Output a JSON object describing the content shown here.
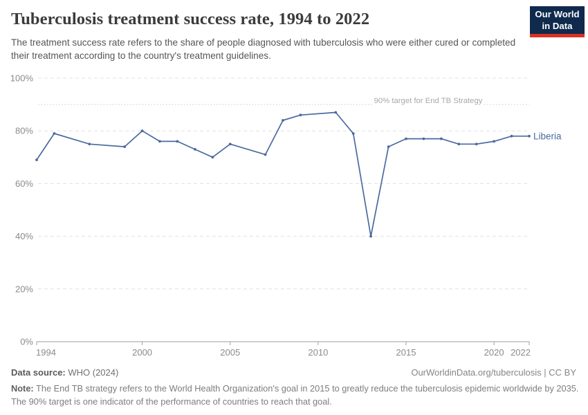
{
  "header": {
    "title": "Tuberculosis treatment success rate, 1994 to 2022",
    "subtitle": "The treatment success rate refers to the share of people diagnosed with tuberculosis who were either cured or completed their treatment according to the country's treatment guidelines.",
    "logo": {
      "line1": "Our World",
      "line2": "in Data"
    }
  },
  "colors": {
    "series_blue": "#4a69a0",
    "logo_bg": "#102a4d",
    "logo_accent": "#dc3020",
    "grid": "#e0e0e0",
    "target_line": "#c9c9c9",
    "target_text": "#a8a8a8",
    "axis_text": "#8a8a8a",
    "axis_line": "#9e9e9e"
  },
  "chart_data": {
    "type": "line",
    "title": "Tuberculosis treatment success rate, 1994 to 2022",
    "xlabel": "",
    "ylabel": "",
    "xlim": [
      1994,
      2022
    ],
    "ylim": [
      0,
      100
    ],
    "x_ticks": [
      1994,
      2000,
      2005,
      2010,
      2015,
      2020,
      2022
    ],
    "y_ticks": [
      0,
      20,
      40,
      60,
      80,
      100
    ],
    "y_tick_suffix": "%",
    "grid": true,
    "target_line": {
      "value": 90,
      "label": "90% target for End TB Strategy"
    },
    "series": [
      {
        "name": "Liberia",
        "points": [
          [
            1994,
            69
          ],
          [
            1995,
            79
          ],
          [
            1997,
            75
          ],
          [
            1999,
            74
          ],
          [
            2000,
            80
          ],
          [
            2001,
            76
          ],
          [
            2002,
            76
          ],
          [
            2003,
            73
          ],
          [
            2004,
            70
          ],
          [
            2005,
            75
          ],
          [
            2007,
            71
          ],
          [
            2008,
            84
          ],
          [
            2009,
            86
          ],
          [
            2011,
            87
          ],
          [
            2012,
            79
          ],
          [
            2013,
            40
          ],
          [
            2014,
            74
          ],
          [
            2015,
            77
          ],
          [
            2016,
            77
          ],
          [
            2017,
            77
          ],
          [
            2018,
            75
          ],
          [
            2019,
            75
          ],
          [
            2020,
            76
          ],
          [
            2021,
            78
          ],
          [
            2022,
            78
          ]
        ]
      }
    ]
  },
  "footer": {
    "source_label": "Data source:",
    "source_value": " WHO (2024)",
    "attribution": "OurWorldinData.org/tuberculosis | CC BY",
    "note_label": "Note:",
    "note_value": " The End TB strategy refers to the World Health Organization's goal in 2015 to greatly reduce the tuberculosis epidemic worldwide by 2035. The 90% target is one indicator of the performance of countries to reach that goal."
  }
}
